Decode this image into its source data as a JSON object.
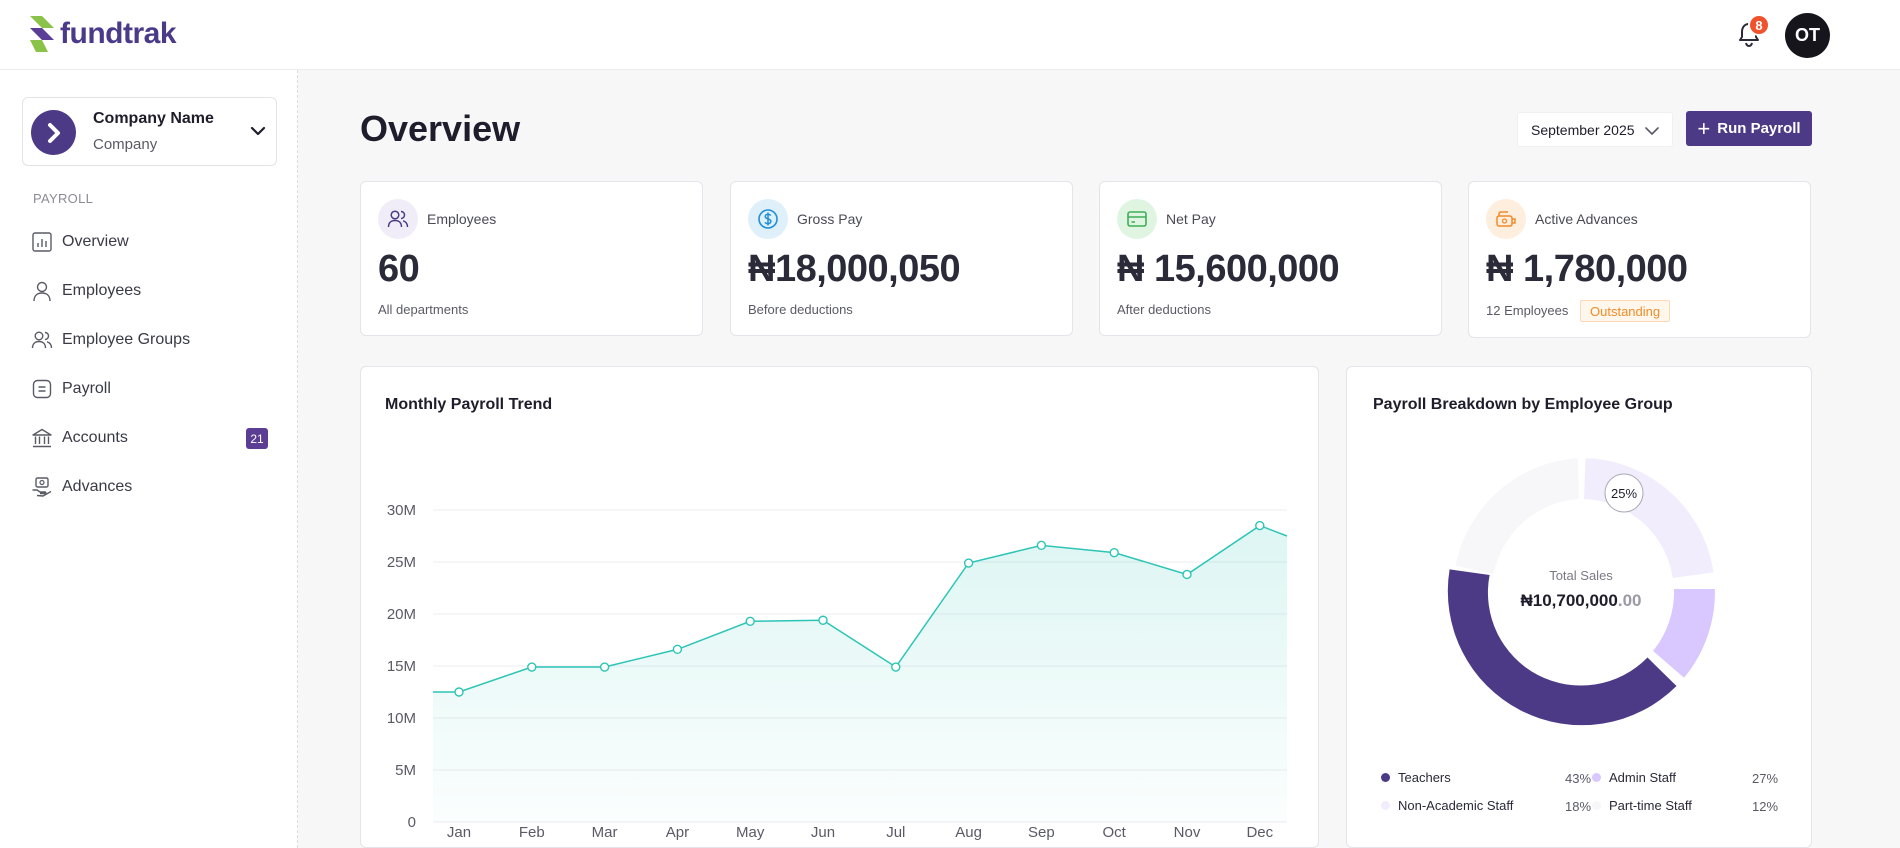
{
  "brand": {
    "name": "fundtrak"
  },
  "header": {
    "notifications_count": "8",
    "avatar_initials": "OT"
  },
  "sidebar": {
    "company_name": "Company Name",
    "company_type": "Company",
    "section_label": "PAYROLL",
    "items": [
      {
        "label": "Overview",
        "icon": "chart-icon"
      },
      {
        "label": "Employees",
        "icon": "user-icon"
      },
      {
        "label": "Employee Groups",
        "icon": "users-icon"
      },
      {
        "label": "Payroll",
        "icon": "payroll-icon"
      },
      {
        "label": "Accounts",
        "icon": "bank-icon",
        "badge": "21"
      },
      {
        "label": "Advances",
        "icon": "advance-icon"
      }
    ]
  },
  "main": {
    "title": "Overview",
    "month": "September 2025",
    "run_payroll_label": "Run Payroll"
  },
  "cards": [
    {
      "label": "Employees",
      "value": "60",
      "sub": "All departments",
      "icon": "users-icon"
    },
    {
      "label": "Gross Pay",
      "value": "₦18,000,050",
      "sub": "Before deductions",
      "icon": "dollar-icon"
    },
    {
      "label": "Net Pay",
      "value": "₦ 15,600,000",
      "sub": "After deductions",
      "icon": "card-icon"
    },
    {
      "label": "Active Advances",
      "value": "₦ 1,780,000",
      "sub": "12 Employees",
      "badge": "Outstanding",
      "icon": "wallet-icon"
    }
  ],
  "trend": {
    "title": "Monthly Payroll Trend",
    "accent": "#2cc5b5"
  },
  "breakdown": {
    "title": "Payroll Breakdown by Employee Group",
    "center_label": "Total Sales",
    "center_value_main": "₦10,700,000",
    "center_value_decimal": ".00",
    "callout": "25%",
    "legend": [
      {
        "name": "Teachers",
        "pct": "43%",
        "color": "#4d3a86"
      },
      {
        "name": "Admin Staff",
        "pct": "27%",
        "color": "#d9c8ff"
      },
      {
        "name": "Non-Academic Staff",
        "pct": "18%",
        "color": "#f1edfd"
      },
      {
        "name": "Part-time Staff",
        "pct": "12%",
        "color": "#f7f7f9"
      }
    ]
  },
  "chart_data": {
    "type": "area",
    "title": "Monthly Payroll Trend",
    "categories": [
      "Jan",
      "Feb",
      "Mar",
      "Apr",
      "May",
      "Jun",
      "Jul",
      "Aug",
      "Sep",
      "Oct",
      "Nov",
      "Dec"
    ],
    "values": [
      12.5,
      14.9,
      14.9,
      16.6,
      19.3,
      19.4,
      14.9,
      24.9,
      26.6,
      25.9,
      23.8,
      28.5
    ],
    "y_tick_labels": [
      "0",
      "5M",
      "10M",
      "15M",
      "20M",
      "25M",
      "30M"
    ],
    "ylim": [
      0,
      30
    ],
    "xlabel": "",
    "ylabel": "",
    "grid": true
  }
}
